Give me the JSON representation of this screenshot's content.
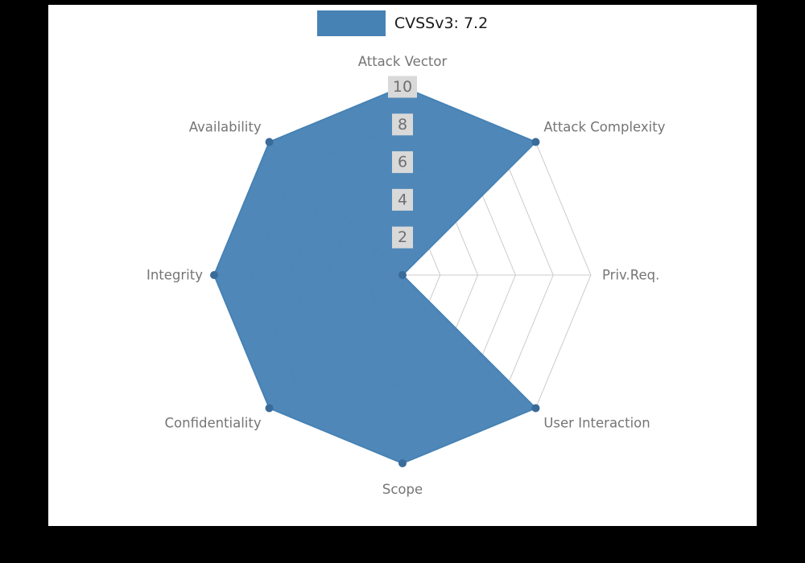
{
  "page": {
    "background": "#000000",
    "panel_background": "#ffffff"
  },
  "legend": {
    "label": "CVSSv3: 7.2",
    "swatch_color": "#4682B4"
  },
  "chart_data": {
    "type": "radar",
    "title": "",
    "legend_entries": [
      "CVSSv3: 7.2"
    ],
    "legend_position": "top-center",
    "categories": [
      "Attack Vector",
      "Attack Complexity",
      "Priv.Req.",
      "User Interaction",
      "Scope",
      "Confidentiality",
      "Integrity",
      "Availability"
    ],
    "series": [
      {
        "name": "CVSSv3: 7.2",
        "values": [
          10,
          10,
          0,
          10,
          10,
          10,
          10,
          10
        ]
      }
    ],
    "ticks": [
      2,
      4,
      6,
      8,
      10
    ],
    "rmax": 10,
    "grid": true,
    "grid_shape": "polygon",
    "colors": {
      "fill": "#4682B4",
      "fill_opacity": 0.95,
      "stroke": "#4682B4",
      "marker": "#3a6b99",
      "grid": "#cccccc",
      "axis_label": "#757575",
      "tick_text": "#6f6f6f",
      "tick_bg": "#d9d9d9",
      "legend_text": "#1a1a1a"
    }
  }
}
